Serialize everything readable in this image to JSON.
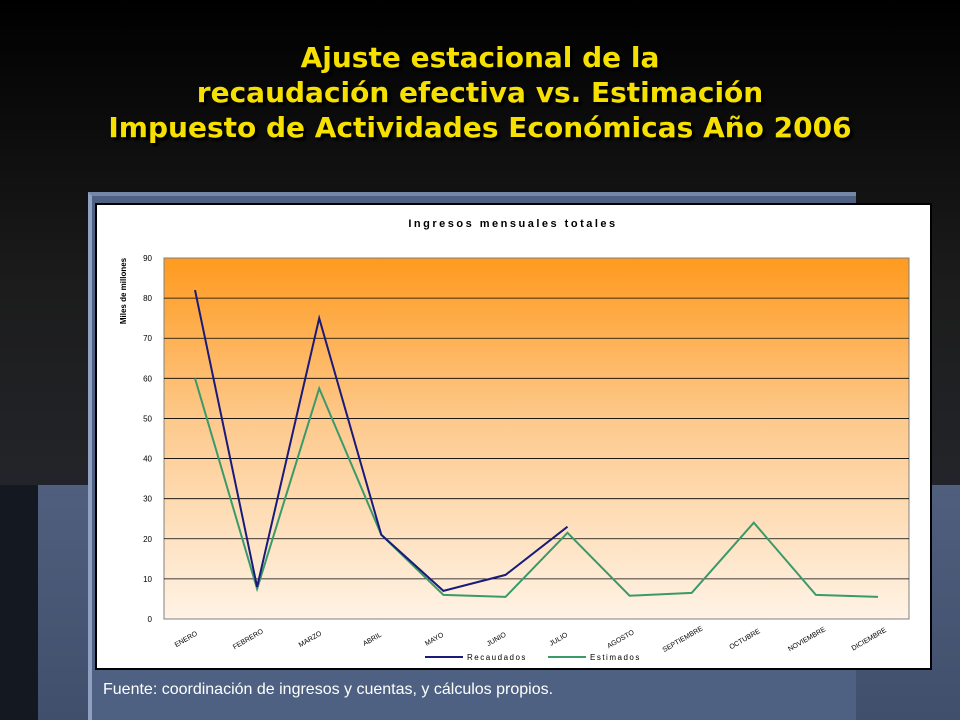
{
  "slide": {
    "title_lines": [
      "Ajuste estacional de la",
      "recaudación efectiva vs. Estimación",
      "Impuesto de Actividades Económicas Año 2006"
    ],
    "source": "Fuente: coordinación de ingresos y cuentas, y cálculos propios.",
    "title_color": "#f6e000"
  },
  "chart_data": {
    "type": "line",
    "title": "Ingresos mensuales totales",
    "ylabel": "Miles de millones",
    "xlabel": "",
    "ylim": [
      0,
      90
    ],
    "yticks": [
      0,
      10,
      20,
      30,
      40,
      50,
      60,
      70,
      80,
      90
    ],
    "categories": [
      "ENERO",
      "FEBRERO",
      "MARZO",
      "ABRIL",
      "MAYO",
      "JUNIO",
      "JULIO",
      "AGOSTO",
      "SEPTIEMBRE",
      "OCTUBRE",
      "NOVIEMBRE",
      "DICIEMBRE"
    ],
    "series": [
      {
        "name": "Recaudados",
        "color": "#1a1a7a",
        "values": [
          82,
          8,
          75,
          21,
          7,
          11,
          23,
          null,
          null,
          null,
          null,
          null
        ]
      },
      {
        "name": "Estimados",
        "color": "#3a9a6a",
        "values": [
          60,
          7.5,
          57.5,
          21,
          6,
          5.5,
          21.5,
          5.8,
          6.5,
          24,
          6,
          5.5
        ]
      }
    ],
    "grid": true,
    "legend": "bottom",
    "plot_background": "gradient orange to light peach"
  }
}
